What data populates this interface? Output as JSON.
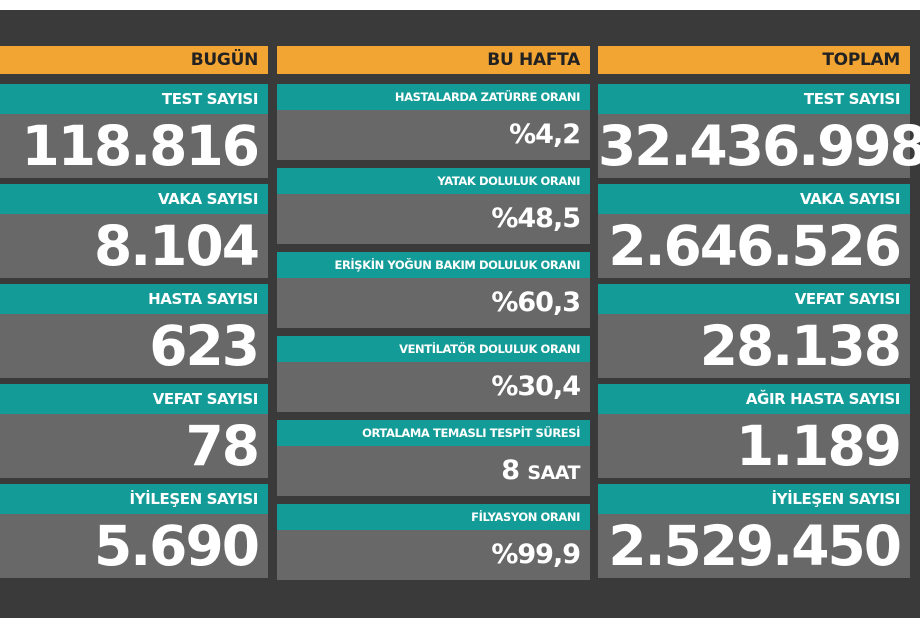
{
  "today": {
    "header": "BUGÜN",
    "items": [
      {
        "label": "TEST SAYISI",
        "value": "118.816"
      },
      {
        "label": "VAKA SAYISI",
        "value": "8.104"
      },
      {
        "label": "HASTA SAYISI",
        "value": "623"
      },
      {
        "label": "VEFAT SAYISI",
        "value": "78"
      },
      {
        "label": "İYİLEŞEN SAYISI",
        "value": "5.690"
      }
    ]
  },
  "week": {
    "header": "BU HAFTA",
    "items": [
      {
        "label": "HASTALARDA ZATÜRRE ORANI",
        "value": "%4,2"
      },
      {
        "label": "YATAK DOLULUK ORANI",
        "value": "%48,5"
      },
      {
        "label": "ERİŞKİN YOĞUN BAKIM DOLULUK ORANI",
        "value": "%60,3"
      },
      {
        "label": "VENTİLATÖR DOLULUK ORANI",
        "value": "%30,4"
      },
      {
        "label": "ORTALAMA TEMASLI TESPİT SÜRESİ",
        "value": "8",
        "unit": "SAAT"
      },
      {
        "label": "FİLYASYON ORANI",
        "value": "%99,9"
      }
    ]
  },
  "total": {
    "header": "TOPLAM",
    "items": [
      {
        "label": "TEST SAYISI",
        "value": "32.436.998"
      },
      {
        "label": "VAKA SAYISI",
        "value": "2.646.526"
      },
      {
        "label": "VEFAT SAYISI",
        "value": "28.138"
      },
      {
        "label": "AĞIR HASTA SAYISI",
        "value": "1.189"
      },
      {
        "label": "İYİLEŞEN SAYISI",
        "value": "2.529.450"
      }
    ],
    "colors": {
      "header": "#f3a533",
      "label": "#129b97",
      "value": "#686868",
      "background": "#3a3a3a"
    }
  }
}
